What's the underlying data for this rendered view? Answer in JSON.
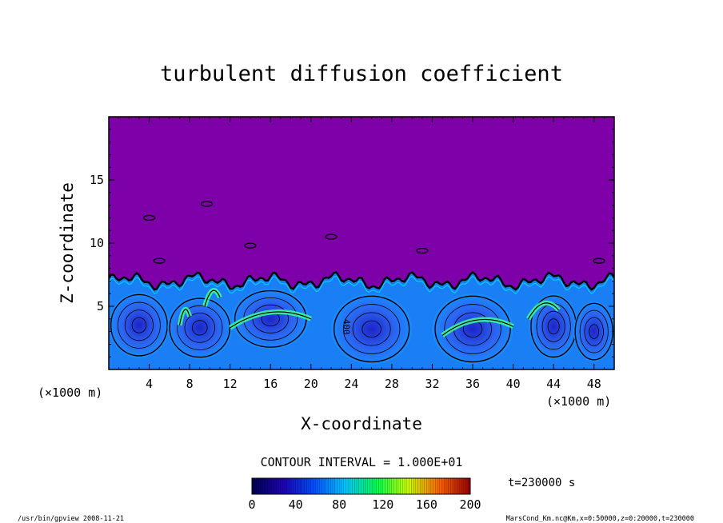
{
  "chart_data": {
    "type": "heatmap",
    "title": "turbulent diffusion coefficient",
    "xlabel": "X-coordinate",
    "ylabel": "Z-coordinate",
    "x_unit": "(×1000 m)",
    "y_unit": "(×1000 m)",
    "xlim": [
      0,
      50
    ],
    "ylim": [
      0,
      20
    ],
    "x_ticks": [
      4,
      8,
      12,
      16,
      20,
      24,
      28,
      32,
      36,
      40,
      44,
      48
    ],
    "y_ticks": [
      5,
      10,
      15
    ],
    "contour_interval_label": "CONTOUR INTERVAL = 1.000E+01",
    "contour_label": "400",
    "colorbar": {
      "min": 0,
      "max": 200,
      "ticks": [
        0,
        40,
        80,
        120,
        160,
        200
      ],
      "colors": [
        "#000050",
        "#1e00b4",
        "#0050ff",
        "#00c8ff",
        "#00ff50",
        "#c8ff00",
        "#ff6400",
        "#960000"
      ]
    },
    "background_color": "#7e00a8",
    "mixed_layer_top_km": 7,
    "time_label": "t=230000 s",
    "footer_left": "/usr/bin/gpview  2008-11-21",
    "footer_right": "MarsCond_Km.nc@Km,x=0:50000,z=0:20000,t=230000"
  }
}
